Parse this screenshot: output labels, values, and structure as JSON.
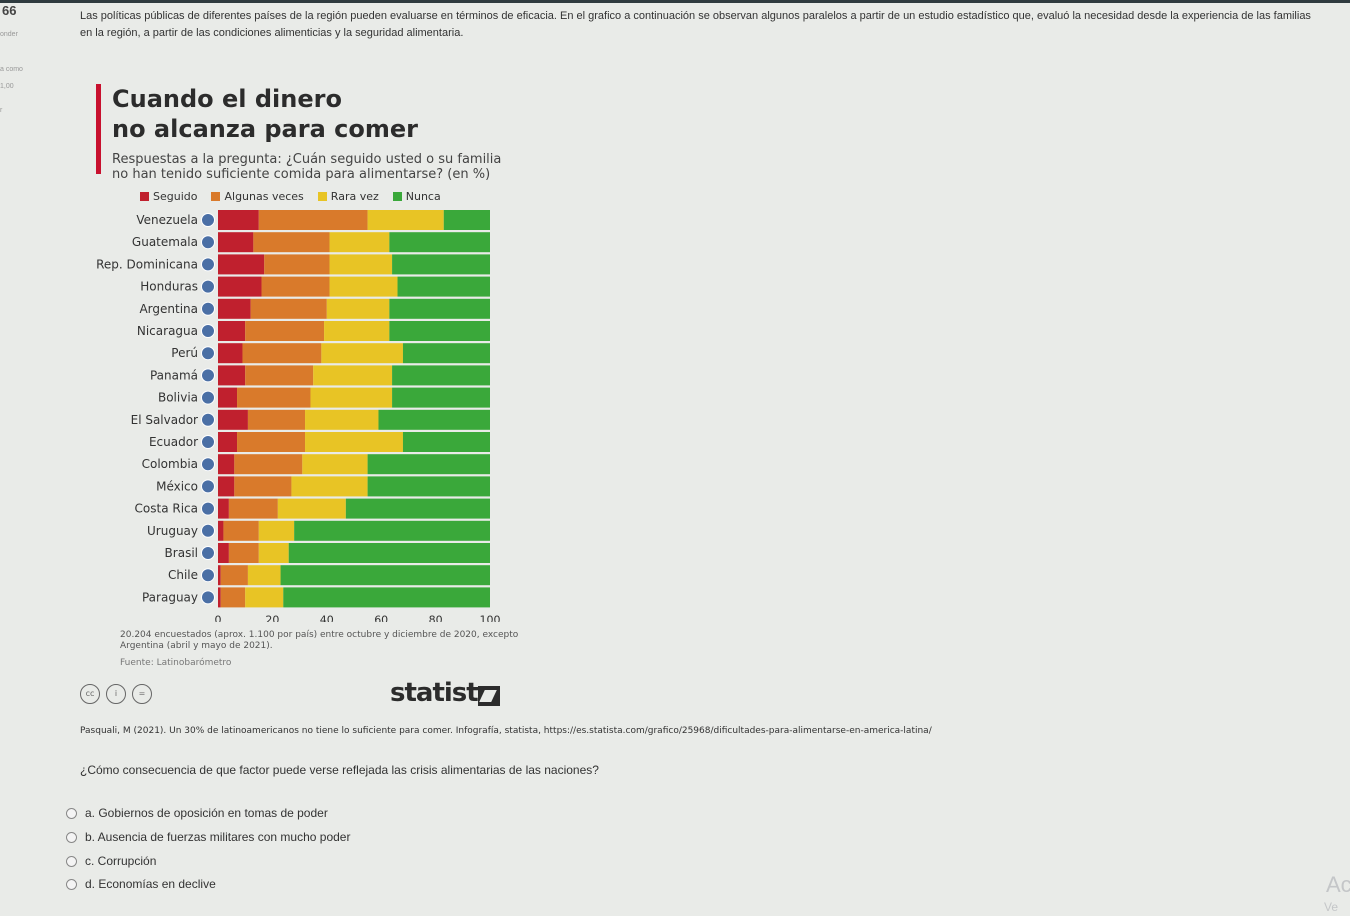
{
  "question_number": "66",
  "side_hints": [
    "onder",
    "a como",
    "1,00",
    "r"
  ],
  "intro": "Las políticas públicas de diferentes países de la región pueden evaluarse en términos de eficacia. En el grafico a continuación se observan algunos paralelos a partir de un estudio estadístico que, evaluó la necesidad desde la experiencia de las familias en la región, a partir de las condiciones alimenticias y la seguridad alimentaria.",
  "infographic": {
    "title_line1": "Cuando el dinero",
    "title_line2": "no alcanza para comer",
    "subtitle": "Respuestas a la pregunta: ¿Cuán seguido usted o su familia no han tenido suficiente comida para alimentarse? (en %)",
    "note": "20.204 encuestados (aprox. 1.100 por país) entre octubre y diciembre de 2020, excepto Argentina (abril y mayo de 2021).",
    "source": "Fuente: Latinobarómetro",
    "brand": "statista",
    "cc_icons": [
      "cc",
      "i",
      "="
    ]
  },
  "chart_data": {
    "type": "bar",
    "orientation": "horizontal",
    "stacked": true,
    "categories": [
      "Venezuela",
      "Guatemala",
      "Rep. Dominicana",
      "Honduras",
      "Argentina",
      "Nicaragua",
      "Perú",
      "Panamá",
      "Bolivia",
      "El Salvador",
      "Ecuador",
      "Colombia",
      "México",
      "Costa Rica",
      "Uruguay",
      "Brasil",
      "Chile",
      "Paraguay"
    ],
    "series": [
      {
        "name": "Seguido",
        "color": "#c0202e",
        "values": [
          15,
          13,
          17,
          16,
          12,
          10,
          9,
          10,
          7,
          11,
          7,
          6,
          6,
          4,
          2,
          4,
          1,
          1
        ]
      },
      {
        "name": "Algunas veces",
        "color": "#d97a2b",
        "values": [
          40,
          28,
          24,
          25,
          28,
          29,
          29,
          25,
          27,
          21,
          25,
          25,
          21,
          18,
          13,
          11,
          10,
          9
        ]
      },
      {
        "name": "Rara vez",
        "color": "#e8c425",
        "values": [
          28,
          22,
          23,
          25,
          23,
          24,
          30,
          29,
          30,
          27,
          36,
          24,
          28,
          25,
          13,
          11,
          12,
          14
        ]
      },
      {
        "name": "Nunca",
        "color": "#3aa83a",
        "values": [
          17,
          37,
          36,
          34,
          37,
          37,
          32,
          36,
          36,
          41,
          32,
          45,
          45,
          53,
          72,
          74,
          77,
          76
        ]
      }
    ],
    "xlim": [
      0,
      100
    ],
    "xticks": [
      "0",
      "20",
      "40",
      "60",
      "80",
      "100"
    ],
    "grid": false,
    "legend": "top"
  },
  "citation": "Pasquali, M (2021). Un 30% de latinoamericanos no tiene lo suficiente para comer. Infografía, statista, https://es.statista.com/grafico/25968/dificultades-para-alimentarse-en-america-latina/",
  "question": "¿Cómo consecuencia de que factor puede verse reflejada las crisis alimentarias de las naciones?",
  "options": [
    {
      "label": "a. Gobiernos de oposición en tomas de poder"
    },
    {
      "label": "b. Ausencia de fuerzas militares con mucho poder"
    },
    {
      "label": "c. Corrupción"
    },
    {
      "label": "d. Economías en declive"
    }
  ],
  "watermark": "Ac",
  "watermark2": "Ve"
}
